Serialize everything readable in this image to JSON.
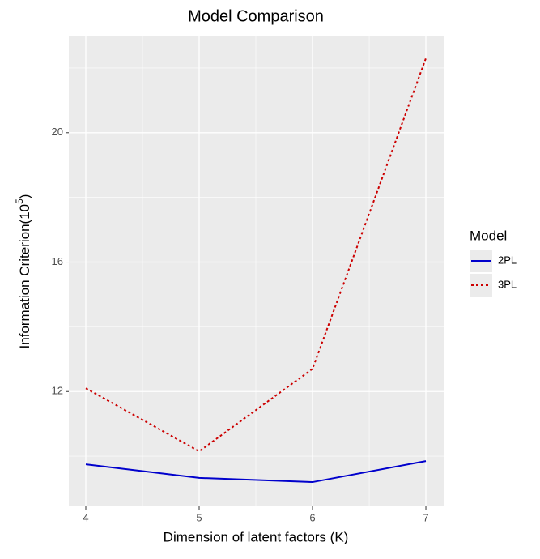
{
  "chart_data": {
    "type": "line",
    "title": "Model Comparison",
    "x_label": "Dimension of latent factors (K)",
    "y_label": "Information Criterion(10",
    "y_label_sup": "5",
    "y_label_end": ")",
    "x": [
      4,
      5,
      6,
      7
    ],
    "series": [
      {
        "name": "2PL",
        "color": "#0000cc",
        "linestyle": "solid",
        "values": [
          9.75,
          9.33,
          9.2,
          9.85
        ]
      },
      {
        "name": "3PL",
        "color": "#cc0000",
        "linestyle": "dotted",
        "values": [
          12.1,
          10.15,
          12.7,
          22.3
        ]
      }
    ],
    "legend_title": "Model",
    "legend": "right",
    "xlim": [
      3.85,
      7.157
    ],
    "xticks": [
      4,
      5,
      6,
      7
    ],
    "ylim": [
      8.45,
      23.0
    ],
    "yticks": [
      12,
      16,
      20
    ],
    "grid": true
  }
}
